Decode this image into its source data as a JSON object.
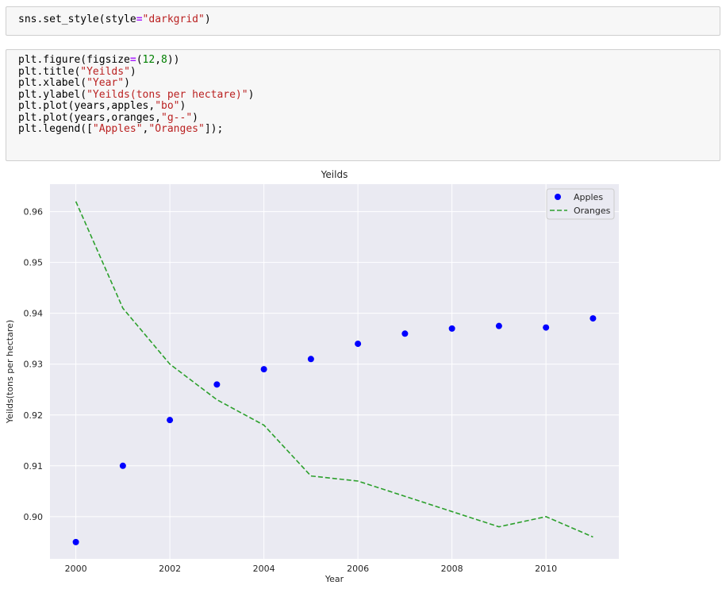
{
  "notebook": {
    "cells": [
      {
        "lines": [
          [
            [
              "t",
              "sns.set_style(style"
            ],
            [
              "k",
              "="
            ],
            [
              "s",
              "\"darkgrid\""
            ],
            [
              "t",
              ")"
            ]
          ]
        ]
      },
      {
        "lines": [
          [
            [
              "t",
              "plt.figure(figsize"
            ],
            [
              "k",
              "="
            ],
            [
              "t",
              "("
            ],
            [
              "n",
              "12"
            ],
            [
              "t",
              ","
            ],
            [
              "n",
              "8"
            ],
            [
              "t",
              "))"
            ]
          ],
          [
            [
              "t",
              "plt.title("
            ],
            [
              "s",
              "\"Yeilds\""
            ],
            [
              "t",
              ")"
            ]
          ],
          [
            [
              "t",
              "plt.xlabel("
            ],
            [
              "s",
              "\"Year\""
            ],
            [
              "t",
              ")"
            ]
          ],
          [
            [
              "t",
              "plt.ylabel("
            ],
            [
              "s",
              "\"Yeilds(tons per hectare)\""
            ],
            [
              "t",
              ")"
            ]
          ],
          [
            [
              "t",
              "plt.plot(years,apples,"
            ],
            [
              "s",
              "\"bo\""
            ],
            [
              "t",
              ")"
            ]
          ],
          [
            [
              "t",
              "plt.plot(years,oranges,"
            ],
            [
              "s",
              "\"g--\""
            ],
            [
              "t",
              ")"
            ]
          ],
          [
            [
              "t",
              "plt.legend(["
            ],
            [
              "s",
              "\"Apples\""
            ],
            [
              "t",
              ","
            ],
            [
              "s",
              "\"Oranges\""
            ],
            [
              "t",
              "]);"
            ]
          ]
        ]
      }
    ]
  },
  "chart_data": {
    "type": "line",
    "title": "Yeilds",
    "xlabel": "Year",
    "ylabel": "Yeilds(tons per hectare)",
    "x": [
      2000,
      2001,
      2002,
      2003,
      2004,
      2005,
      2006,
      2007,
      2008,
      2009,
      2010,
      2011
    ],
    "xlim": [
      1999.45,
      2011.55
    ],
    "ylim": [
      0.8917,
      0.9654
    ],
    "xticks": [
      2000,
      2002,
      2004,
      2006,
      2008,
      2010
    ],
    "yticks": [
      0.9,
      0.91,
      0.92,
      0.93,
      0.94,
      0.95,
      0.96
    ],
    "ytick_labels": [
      "0.90",
      "0.91",
      "0.92",
      "0.93",
      "0.94",
      "0.95",
      "0.96"
    ],
    "grid": true,
    "legend_position": "top-right",
    "series": [
      {
        "name": "Apples",
        "style": "markers",
        "color": "#0000ff",
        "values": [
          0.895,
          0.91,
          0.919,
          0.926,
          0.929,
          0.931,
          0.934,
          0.936,
          0.937,
          0.9375,
          0.9372,
          0.939
        ]
      },
      {
        "name": "Oranges",
        "style": "dashed",
        "color": "#2ca02c",
        "values": [
          0.962,
          0.941,
          0.93,
          0.923,
          0.918,
          0.908,
          0.907,
          0.904,
          0.901,
          0.898,
          0.9,
          0.896
        ]
      }
    ],
    "colors": {
      "background": "#eaeaf2",
      "grid": "#ffffff",
      "text": "#262626"
    }
  }
}
